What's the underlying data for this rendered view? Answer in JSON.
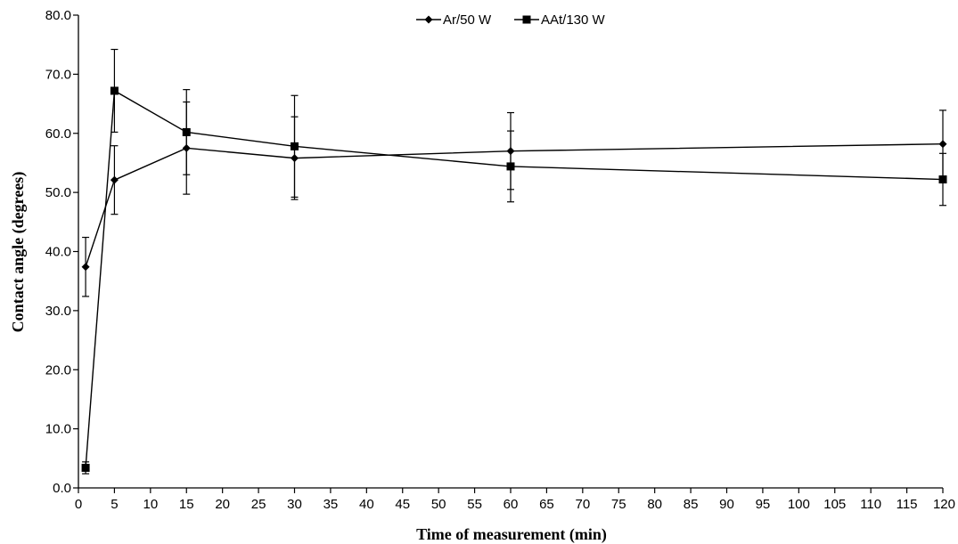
{
  "chart_data": {
    "type": "line",
    "xlabel": "Time of measurement (min)",
    "ylabel": "Contact angle (degrees)",
    "xlim": [
      0,
      120
    ],
    "ylim": [
      0,
      80
    ],
    "x_ticks": [
      "0",
      "5",
      "10",
      "15",
      "20",
      "25",
      "30",
      "35",
      "40",
      "45",
      "50",
      "55",
      "60",
      "65",
      "70",
      "75",
      "80",
      "85",
      "90",
      "95",
      "100",
      "105",
      "110",
      "115",
      "120"
    ],
    "y_ticks": [
      "0.0",
      "10.0",
      "20.0",
      "30.0",
      "40.0",
      "50.0",
      "60.0",
      "70.0",
      "80.0"
    ],
    "grid": false,
    "legend_position": "top-center",
    "series": [
      {
        "name": "Ar/50 W",
        "marker": "diamond",
        "color": "#000000",
        "x": [
          1,
          5,
          15,
          30,
          60,
          120
        ],
        "y": [
          37.4,
          52.1,
          57.5,
          55.8,
          57.0,
          58.2
        ],
        "error": [
          5.0,
          5.8,
          7.8,
          7.0,
          6.5,
          5.7
        ]
      },
      {
        "name": "AAt/130 W",
        "marker": "square",
        "color": "#000000",
        "x": [
          1,
          5,
          15,
          30,
          60,
          120
        ],
        "y": [
          3.4,
          67.2,
          60.2,
          57.8,
          54.4,
          52.2
        ],
        "error": [
          1.0,
          7.0,
          7.2,
          8.6,
          6.0,
          4.4
        ]
      }
    ]
  }
}
